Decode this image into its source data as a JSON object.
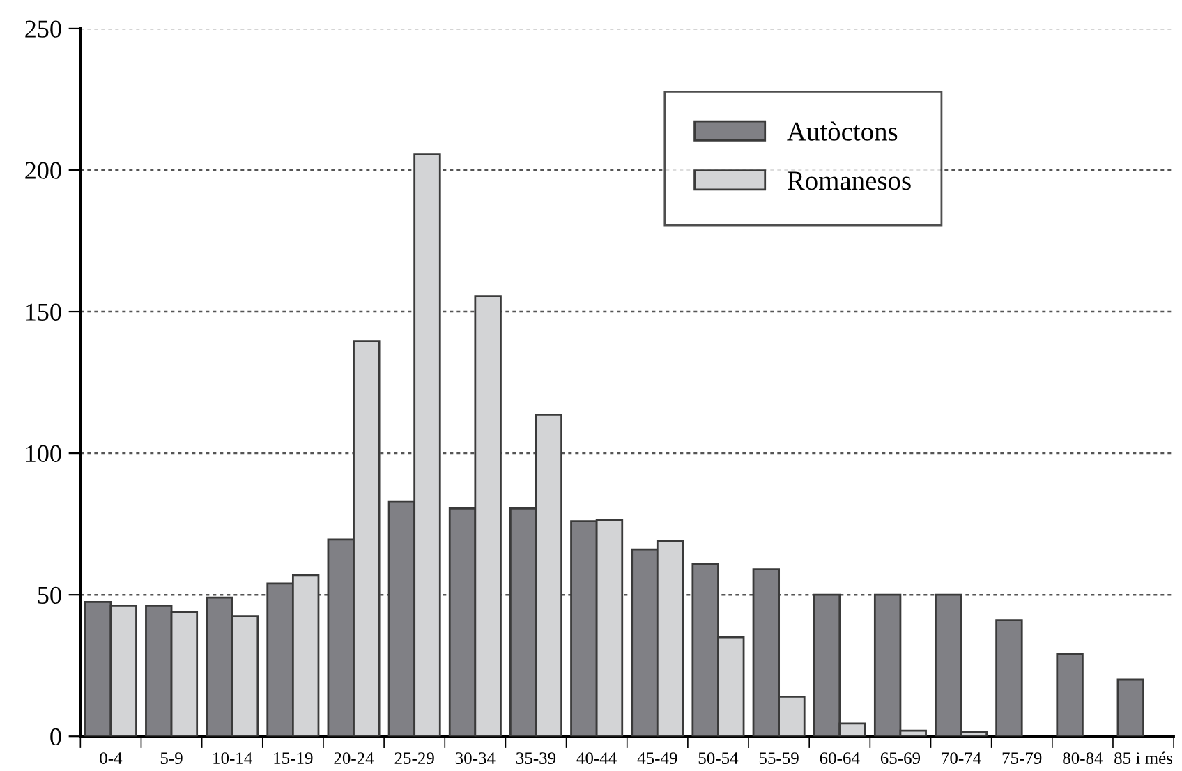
{
  "chart_data": {
    "type": "bar",
    "categories": [
      "0-4",
      "5-9",
      "10-14",
      "15-19",
      "20-24",
      "25-29",
      "30-34",
      "35-39",
      "40-44",
      "45-49",
      "50-54",
      "55-59",
      "60-64",
      "65-69",
      "70-74",
      "75-79",
      "80-84",
      "85 i més"
    ],
    "series": [
      {
        "name": "Autòctons",
        "color": "#808085",
        "values": [
          47.5,
          46,
          49,
          54,
          69.5,
          83,
          80.5,
          80.5,
          76,
          66,
          61,
          59,
          50,
          50,
          50,
          41,
          29,
          20
        ]
      },
      {
        "name": "Romanesos",
        "color": "#d3d4d6",
        "values": [
          46,
          44,
          42.5,
          57,
          139.5,
          205.5,
          155.5,
          113.5,
          76.5,
          69,
          35,
          14,
          4.5,
          2,
          1.5,
          null,
          null,
          null
        ]
      }
    ],
    "ylim": [
      0,
      250
    ],
    "yticks": [
      0,
      50,
      100,
      150,
      200,
      250
    ],
    "grid": "y",
    "legend": "top right"
  }
}
